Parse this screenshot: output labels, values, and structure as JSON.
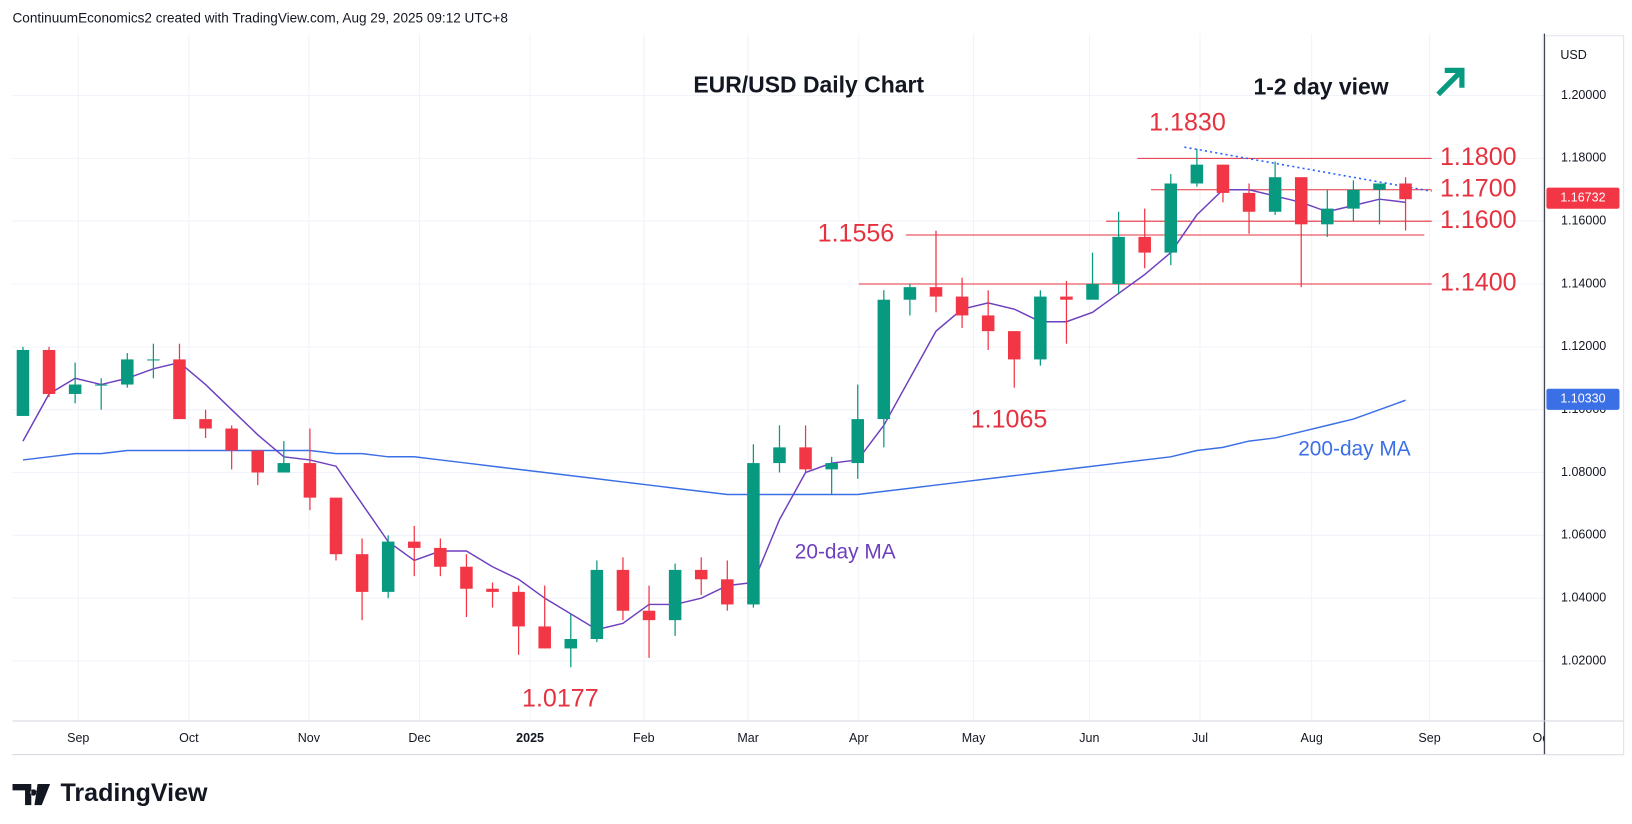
{
  "header": {
    "text": "ContinuumEconomics2 created with TradingView.com, Aug 29, 2025 09:12 UTC+8"
  },
  "logo": {
    "text": "TradingView"
  },
  "chart_data": {
    "type": "candlestick",
    "title": "EUR/USD Daily Chart",
    "subtitle": "1-2 day view",
    "currency": "USD",
    "up_color": "#089981",
    "down_color": "#f23645",
    "ylim": [
      1.0009,
      1.2197
    ],
    "yticks": [
      {
        "value": 1.02,
        "label": "1.02000"
      },
      {
        "value": 1.04,
        "label": "1.04000"
      },
      {
        "value": 1.06,
        "label": "1.06000"
      },
      {
        "value": 1.08,
        "label": "1.08000"
      },
      {
        "value": 1.1,
        "label": "1.10000"
      },
      {
        "value": 1.12,
        "label": "1.12000"
      },
      {
        "value": 1.14,
        "label": "1.14000"
      },
      {
        "value": 1.16,
        "label": "1.16000"
      },
      {
        "value": 1.18,
        "label": "1.18000"
      },
      {
        "value": 1.2,
        "label": "1.20000"
      }
    ],
    "xticks": [
      "Sep",
      "Oct",
      "Nov",
      "Dec",
      "2025",
      "Feb",
      "Mar",
      "Apr",
      "May",
      "Jun",
      "Jul",
      "Aug",
      "Sep",
      "Oct"
    ],
    "grid": true,
    "candles": {
      "open": [
        1.098,
        1.119,
        1.105,
        1.108,
        1.108,
        1.116,
        1.116,
        1.097,
        1.094,
        1.087,
        1.08,
        1.083,
        1.072,
        1.054,
        1.042,
        1.058,
        1.056,
        1.05,
        1.043,
        1.042,
        1.031,
        1.024,
        1.027,
        1.049,
        1.036,
        1.033,
        1.049,
        1.046,
        1.038,
        1.083,
        1.088,
        1.081,
        1.083,
        1.097,
        1.135,
        1.139,
        1.136,
        1.13,
        1.125,
        1.116,
        1.136,
        1.135,
        1.14,
        1.155,
        1.15,
        1.172,
        1.178,
        1.169,
        1.163,
        1.174,
        1.159,
        1.164,
        1.17,
        1.172
      ],
      "high": [
        1.12,
        1.12,
        1.115,
        1.11,
        1.118,
        1.121,
        1.121,
        1.1,
        1.095,
        1.087,
        1.09,
        1.094,
        1.072,
        1.059,
        1.06,
        1.063,
        1.059,
        1.054,
        1.045,
        1.044,
        1.044,
        1.035,
        1.052,
        1.053,
        1.044,
        1.051,
        1.053,
        1.052,
        1.089,
        1.095,
        1.095,
        1.085,
        1.108,
        1.138,
        1.14,
        1.157,
        1.142,
        1.138,
        1.125,
        1.138,
        1.141,
        1.15,
        1.163,
        1.164,
        1.175,
        1.183,
        1.178,
        1.172,
        1.179,
        1.174,
        1.17,
        1.173,
        1.172,
        1.174
      ],
      "low": [
        1.098,
        1.104,
        1.102,
        1.1,
        1.107,
        1.11,
        1.097,
        1.091,
        1.081,
        1.076,
        1.08,
        1.068,
        1.052,
        1.033,
        1.04,
        1.047,
        1.047,
        1.034,
        1.037,
        1.022,
        1.024,
        1.018,
        1.026,
        1.033,
        1.021,
        1.028,
        1.041,
        1.036,
        1.037,
        1.08,
        1.08,
        1.073,
        1.078,
        1.088,
        1.13,
        1.131,
        1.126,
        1.119,
        1.107,
        1.114,
        1.121,
        1.136,
        1.137,
        1.145,
        1.146,
        1.171,
        1.166,
        1.156,
        1.162,
        1.139,
        1.155,
        1.16,
        1.159,
        1.157
      ],
      "close": [
        1.119,
        1.105,
        1.108,
        1.108,
        1.116,
        1.116,
        1.097,
        1.094,
        1.087,
        1.08,
        1.083,
        1.072,
        1.054,
        1.042,
        1.058,
        1.056,
        1.05,
        1.043,
        1.042,
        1.031,
        1.024,
        1.027,
        1.049,
        1.036,
        1.033,
        1.049,
        1.046,
        1.038,
        1.083,
        1.088,
        1.081,
        1.083,
        1.097,
        1.135,
        1.139,
        1.136,
        1.13,
        1.125,
        1.116,
        1.136,
        1.135,
        1.14,
        1.155,
        1.15,
        1.172,
        1.178,
        1.169,
        1.163,
        1.174,
        1.159,
        1.164,
        1.17,
        1.172,
        1.167
      ]
    },
    "ma20": {
      "name": "20-day MA",
      "color": "#6e3fbf",
      "values": [
        1.09,
        1.105,
        1.11,
        1.108,
        1.11,
        1.113,
        1.115,
        1.108,
        1.1,
        1.092,
        1.085,
        1.084,
        1.082,
        1.07,
        1.058,
        1.052,
        1.055,
        1.055,
        1.05,
        1.046,
        1.04,
        1.035,
        1.03,
        1.032,
        1.038,
        1.038,
        1.04,
        1.044,
        1.045,
        1.065,
        1.08,
        1.083,
        1.084,
        1.095,
        1.11,
        1.125,
        1.132,
        1.134,
        1.132,
        1.128,
        1.128,
        1.131,
        1.137,
        1.143,
        1.15,
        1.162,
        1.17,
        1.17,
        1.168,
        1.166,
        1.163,
        1.165,
        1.167,
        1.166
      ]
    },
    "ma200": {
      "name": "200-day MA",
      "color": "#3b6fe6",
      "values": [
        1.084,
        1.085,
        1.086,
        1.086,
        1.087,
        1.087,
        1.087,
        1.087,
        1.087,
        1.087,
        1.087,
        1.087,
        1.086,
        1.086,
        1.085,
        1.085,
        1.084,
        1.083,
        1.082,
        1.081,
        1.08,
        1.079,
        1.078,
        1.077,
        1.076,
        1.075,
        1.074,
        1.073,
        1.073,
        1.073,
        1.073,
        1.073,
        1.073,
        1.074,
        1.075,
        1.076,
        1.077,
        1.078,
        1.079,
        1.08,
        1.081,
        1.082,
        1.083,
        1.084,
        1.085,
        1.087,
        1.088,
        1.09,
        1.091,
        1.093,
        1.095,
        1.097,
        1.1,
        1.103
      ]
    },
    "last_price": {
      "value": 1.16732,
      "label": "1.16732",
      "color": "#f23645"
    },
    "ma200_last": {
      "value": 1.1033,
      "label": "1.10330",
      "color": "#3b6fe6"
    },
    "levels": [
      {
        "label": "1.1830",
        "value": 1.183
      },
      {
        "label": "1.1800",
        "value": 1.18
      },
      {
        "label": "1.1700",
        "value": 1.17
      },
      {
        "label": "1.1600",
        "value": 1.16
      },
      {
        "label": "1.1556",
        "value": 1.1556
      },
      {
        "label": "1.1400",
        "value": 1.14
      },
      {
        "label": "1.1065",
        "value": 1.1065
      },
      {
        "label": "1.0177",
        "value": 1.0177
      }
    ],
    "level_color": "#e5323e"
  }
}
